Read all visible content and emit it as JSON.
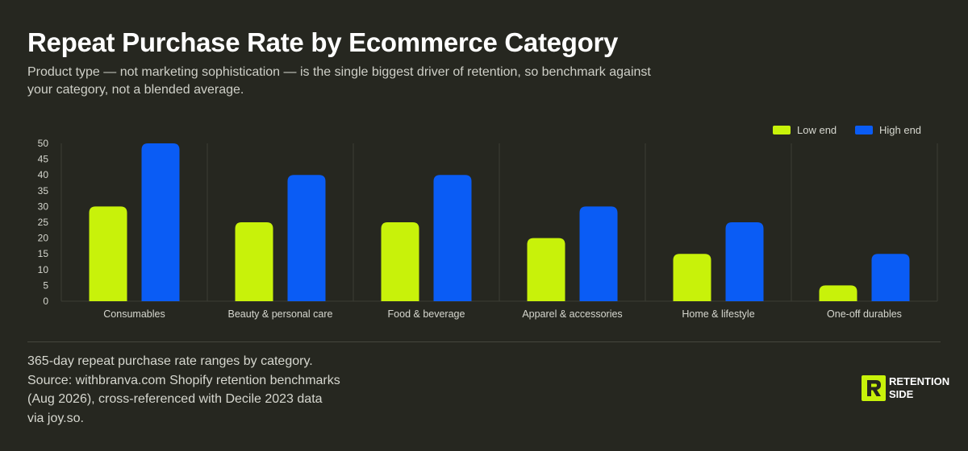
{
  "header": {
    "title": "Repeat Purchase Rate by Ecommerce Category",
    "subtitle": "Product type — not marketing sophistication — is the single biggest driver of retention, so benchmark against your category, not a blended average."
  },
  "footnote": {
    "line1": "365-day repeat purchase rate ranges by category.",
    "line2": "Source: withbranva.com Shopify retention benchmarks",
    "line3": "(Aug 2026), cross-referenced with Decile 2023 data",
    "line4": "via joy.so."
  },
  "logo": {
    "line1": "RETENTION",
    "line2": "SIDE"
  },
  "colors": {
    "background": "#262720",
    "low": "#c8f20a",
    "high": "#0a5cf5",
    "grid": "#3c3d35",
    "axis_text": "#d6d7cf"
  },
  "chart_data": {
    "type": "bar",
    "categories": [
      "Consumables",
      "Beauty & personal care",
      "Food & beverage",
      "Apparel & accessories",
      "Home & lifestyle",
      "One-off durables"
    ],
    "series": [
      {
        "name": "Low end",
        "values": [
          30,
          25,
          25,
          20,
          15,
          5
        ]
      },
      {
        "name": "High end",
        "values": [
          50,
          40,
          40,
          30,
          25,
          15
        ]
      }
    ],
    "yticks": [
      0,
      5,
      10,
      15,
      20,
      25,
      30,
      35,
      40,
      45,
      50
    ],
    "ylim": [
      0,
      50
    ],
    "legend_position": "top-right",
    "grid": "vertical category separators"
  }
}
